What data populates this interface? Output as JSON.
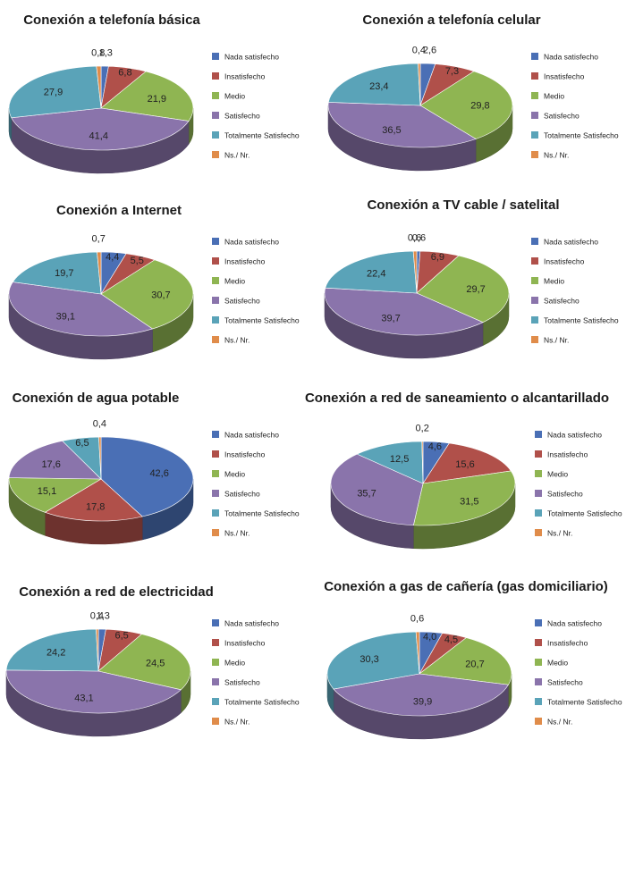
{
  "colors": {
    "nada": "#4a6fb5",
    "insatisfecho": "#b0504a",
    "medio": "#8fb552",
    "satisfecho": "#8a74ab",
    "totalmente": "#5aa3b8",
    "ns": "#e08c4a"
  },
  "legend_keys": [
    "nada",
    "insatisfecho",
    "medio",
    "satisfecho",
    "totalmente",
    "ns"
  ],
  "chart_data": [
    {
      "type": "pie",
      "title": "Conexión a telefonía básica",
      "categories": [
        "Nada satisfecho",
        "Insatisfecho",
        "Medio",
        "Satisfecho",
        "Totalmente Satisfecho",
        "Ns./ Nr."
      ],
      "values": [
        1.3,
        6.8,
        21.9,
        41.4,
        27.9,
        0.8
      ],
      "labels": [
        "1,3",
        "6,8",
        "21,9",
        "41,4",
        "27,9",
        "0,8"
      ]
    },
    {
      "type": "pie",
      "title": "Conexión a telefonía celular",
      "categories": [
        "Nada satisfecho",
        "Insatisfecho",
        "Medio",
        "Satisfecho",
        "Totalmente Satisfecho",
        "Ns./ Nr."
      ],
      "values": [
        2.6,
        7.3,
        29.8,
        36.5,
        23.4,
        0.4
      ],
      "labels": [
        "2,6",
        "7,3",
        "29,8",
        "36,5",
        "23,4",
        "0,4"
      ]
    },
    {
      "type": "pie",
      "title": "Conexión a Internet",
      "categories": [
        "Nada satisfecho",
        "Insatisfecho",
        "Medio",
        "Satisfecho",
        "Totalmente Satisfecho",
        "Ns./ Nr."
      ],
      "values": [
        4.4,
        5.5,
        30.7,
        39.1,
        19.7,
        0.7
      ],
      "labels": [
        "4,4",
        "5,5",
        "30,7",
        "39,1",
        "19,7",
        "0,7"
      ]
    },
    {
      "type": "pie",
      "title": "Conexión a TV cable / satelital",
      "categories": [
        "Nada satisfecho",
        "Insatisfecho",
        "Medio",
        "Satisfecho",
        "Totalmente Satisfecho",
        "Ns./ Nr."
      ],
      "values": [
        0.6,
        6.9,
        29.7,
        39.7,
        22.4,
        0.6
      ],
      "labels": [
        "0,6",
        "6,9",
        "29,7",
        "39,7",
        "22,4",
        "0,6"
      ]
    },
    {
      "type": "pie",
      "title": "Conexión de agua potable",
      "categories": [
        "Nada satisfecho",
        "Insatisfecho",
        "Medio",
        "Satisfecho",
        "Totalmente Satisfecho",
        "Ns./ Nr."
      ],
      "values": [
        42.6,
        17.8,
        15.1,
        17.6,
        6.5,
        0.4
      ],
      "labels": [
        "42,6",
        "17,8",
        "15,1",
        "17,6",
        "6,5",
        "0,4"
      ]
    },
    {
      "type": "pie",
      "title": "Conexión a red de saneamiento o alcantarillado",
      "categories": [
        "Nada satisfecho",
        "Insatisfecho",
        "Medio",
        "Satisfecho",
        "Totalmente Satisfecho",
        "Ns./ Nr."
      ],
      "values": [
        4.6,
        15.6,
        31.5,
        35.7,
        12.5,
        0.2
      ],
      "labels": [
        "4,6",
        "15,6",
        "31,5",
        "35,7",
        "12,5",
        "0,2"
      ]
    },
    {
      "type": "pie",
      "title": "Conexión a red de electricidad",
      "categories": [
        "Nada satisfecho",
        "Insatisfecho",
        "Medio",
        "Satisfecho",
        "Totalmente Satisfecho",
        "Ns./ Nr."
      ],
      "values": [
        1.3,
        6.5,
        24.5,
        43.1,
        24.2,
        0.4
      ],
      "labels": [
        "1,3",
        "6,5",
        "24,5",
        "43,1",
        "24,2",
        "0,4"
      ]
    },
    {
      "type": "pie",
      "title": "Conexión a gas de cañería (gas domiciliario)",
      "categories": [
        "Nada satisfecho",
        "Insatisfecho",
        "Medio",
        "Satisfecho",
        "Totalmente Satisfecho",
        "Ns./ Nr."
      ],
      "values": [
        4.0,
        4.5,
        20.7,
        39.9,
        30.3,
        0.6
      ],
      "labels": [
        "4,0",
        "4,5",
        "20,7",
        "39,9",
        "30,3",
        "0,6"
      ]
    }
  ]
}
